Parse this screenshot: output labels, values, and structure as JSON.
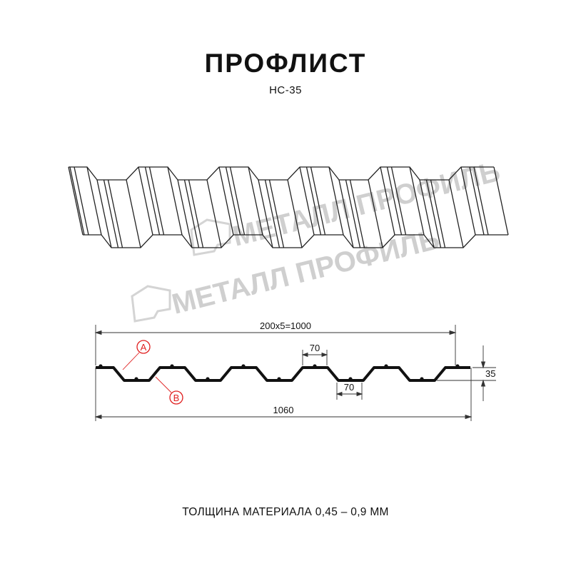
{
  "header": {
    "title": "ПРОФЛИСТ",
    "subtitle": "НС-35"
  },
  "watermark": {
    "text": "МЕТАЛЛ ПРОФИЛЬ"
  },
  "dimensions": {
    "pitch_total": "200x5=1000",
    "overall_width": "1060",
    "top_flat": "70",
    "bottom_flat": "70",
    "height": "35"
  },
  "callouts": {
    "a": "A",
    "b": "B"
  },
  "footer": {
    "thickness": "ТОЛЩИНА МАТЕРИАЛА 0,45 – 0,9 ММ"
  },
  "colors": {
    "line": "#111111",
    "callout": "#e02020",
    "watermark": "#cfcfcf"
  }
}
